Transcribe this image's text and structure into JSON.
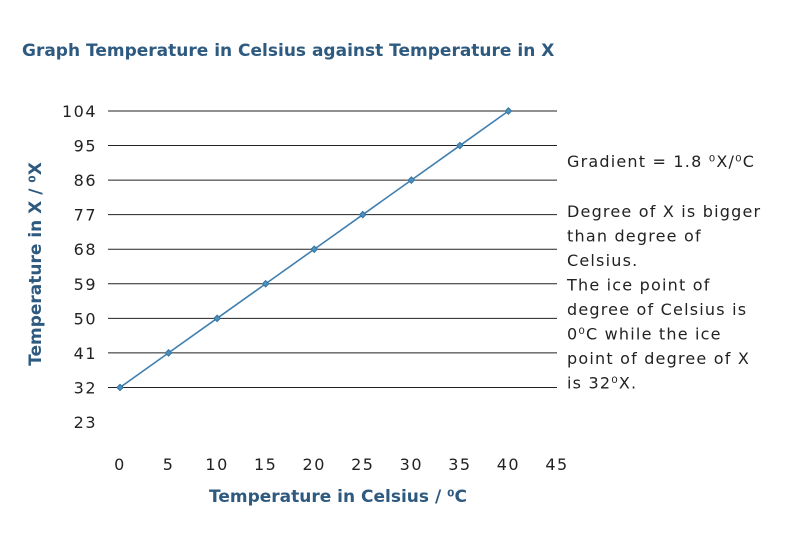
{
  "chart_data": {
    "type": "line",
    "title": "Graph Temperature in Celsius against Temperature in X",
    "xlabel": "Temperature in Celsius / ⁰C",
    "ylabel": "Temperature in X / ⁰X",
    "x": [
      0,
      5,
      10,
      15,
      20,
      25,
      30,
      35,
      40
    ],
    "xticks": [
      0,
      5,
      10,
      15,
      20,
      25,
      30,
      35,
      40,
      45
    ],
    "xlim": [
      0,
      45
    ],
    "yticks": [
      23,
      32,
      41,
      50,
      59,
      68,
      77,
      86,
      95,
      104
    ],
    "ylim": [
      23,
      104
    ],
    "grid": true,
    "series": [
      {
        "name": "Temperature in X",
        "values": [
          32,
          41,
          50,
          59,
          68,
          77,
          86,
          95,
          104
        ],
        "color": "#3f7fb0"
      }
    ],
    "annotations": [
      {
        "id": "gradient",
        "lines": [
          "Gradient = 1.8 ⁰X/⁰C"
        ]
      },
      {
        "id": "explanation",
        "lines": [
          "Degree of X is bigger",
          "than degree of",
          "Celsius.",
          "The ice point of",
          "degree of Celsius is",
          "0⁰C while the ice",
          "point of degree of X",
          "is 32⁰X."
        ]
      }
    ]
  },
  "colors": {
    "title": "#2e5a80",
    "axis_title": "#2e5a80",
    "grid": "#222222",
    "series": "#3f7fb0",
    "text": "#222222"
  }
}
